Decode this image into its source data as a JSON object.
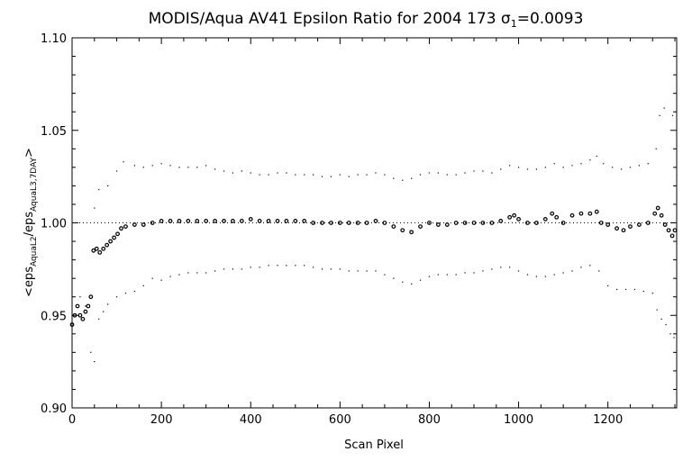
{
  "chart_data": {
    "type": "scatter",
    "title_main": "MODIS/Aqua AV41 Epsilon Ratio for 2004 173 ",
    "title_sigma": "σ",
    "title_sigma_sub": "1",
    "title_value": "=0.0093",
    "xlabel": "Scan Pixel",
    "ylabel_parts": {
      "open": "<eps",
      "sub1": "AquaL2",
      "slash": "/eps",
      "sub2": "AquaL3,7DAY",
      "close": ">"
    },
    "xlim": [
      0,
      1354
    ],
    "ylim": [
      0.9,
      1.1
    ],
    "x_ticks": [
      {
        "value": 0,
        "label": "0"
      },
      {
        "value": 200,
        "label": "200"
      },
      {
        "value": 400,
        "label": "400"
      },
      {
        "value": 600,
        "label": "600"
      },
      {
        "value": 800,
        "label": "800"
      },
      {
        "value": 1000,
        "label": "1000"
      },
      {
        "value": 1200,
        "label": "1200"
      }
    ],
    "y_ticks": [
      {
        "value": 0.9,
        "label": "0.90"
      },
      {
        "value": 0.95,
        "label": "0.95"
      },
      {
        "value": 1.0,
        "label": "1.00"
      },
      {
        "value": 1.05,
        "label": "1.05"
      },
      {
        "value": 1.1,
        "label": "1.10"
      }
    ],
    "reference_line": 1.0,
    "grid": false,
    "legend": "none",
    "series": [
      {
        "role": "mean",
        "points": [
          [
            0,
            0.945
          ],
          [
            6,
            0.95
          ],
          [
            12,
            0.955
          ],
          [
            18,
            0.95
          ],
          [
            24,
            0.948
          ],
          [
            30,
            0.952
          ],
          [
            36,
            0.955
          ],
          [
            42,
            0.96
          ],
          [
            48,
            0.985
          ],
          [
            55,
            0.986
          ],
          [
            62,
            0.984
          ],
          [
            70,
            0.986
          ],
          [
            78,
            0.988
          ],
          [
            86,
            0.99
          ],
          [
            94,
            0.992
          ],
          [
            102,
            0.994
          ],
          [
            110,
            0.997
          ],
          [
            120,
            0.998
          ],
          [
            140,
            0.999
          ],
          [
            160,
            0.999
          ],
          [
            180,
            1.0
          ],
          [
            200,
            1.001
          ],
          [
            220,
            1.001
          ],
          [
            240,
            1.001
          ],
          [
            260,
            1.001
          ],
          [
            280,
            1.001
          ],
          [
            300,
            1.001
          ],
          [
            320,
            1.001
          ],
          [
            340,
            1.001
          ],
          [
            360,
            1.001
          ],
          [
            380,
            1.001
          ],
          [
            400,
            1.002
          ],
          [
            420,
            1.001
          ],
          [
            440,
            1.001
          ],
          [
            460,
            1.001
          ],
          [
            480,
            1.001
          ],
          [
            500,
            1.001
          ],
          [
            520,
            1.001
          ],
          [
            540,
            1.0
          ],
          [
            560,
            1.0
          ],
          [
            580,
            1.0
          ],
          [
            600,
            1.0
          ],
          [
            620,
            1.0
          ],
          [
            640,
            1.0
          ],
          [
            660,
            1.0
          ],
          [
            680,
            1.001
          ],
          [
            700,
            1.0
          ],
          [
            720,
            0.998
          ],
          [
            740,
            0.996
          ],
          [
            760,
            0.995
          ],
          [
            780,
            0.998
          ],
          [
            800,
            1.0
          ],
          [
            820,
            0.999
          ],
          [
            840,
            0.999
          ],
          [
            860,
            1.0
          ],
          [
            880,
            1.0
          ],
          [
            900,
            1.0
          ],
          [
            920,
            1.0
          ],
          [
            940,
            1.0
          ],
          [
            960,
            1.001
          ],
          [
            980,
            1.003
          ],
          [
            990,
            1.004
          ],
          [
            1000,
            1.002
          ],
          [
            1020,
            1.0
          ],
          [
            1040,
            1.0
          ],
          [
            1060,
            1.002
          ],
          [
            1075,
            1.005
          ],
          [
            1085,
            1.003
          ],
          [
            1100,
            1.0
          ],
          [
            1120,
            1.004
          ],
          [
            1140,
            1.005
          ],
          [
            1160,
            1.005
          ],
          [
            1175,
            1.006
          ],
          [
            1185,
            1.0
          ],
          [
            1200,
            0.999
          ],
          [
            1220,
            0.997
          ],
          [
            1235,
            0.996
          ],
          [
            1250,
            0.998
          ],
          [
            1270,
            0.999
          ],
          [
            1290,
            1.0
          ],
          [
            1305,
            1.005
          ],
          [
            1312,
            1.008
          ],
          [
            1320,
            1.004
          ],
          [
            1328,
            0.999
          ],
          [
            1336,
            0.996
          ],
          [
            1344,
            0.993
          ],
          [
            1350,
            0.996
          ]
        ]
      },
      {
        "role": "upper",
        "points": [
          [
            50,
            1.008
          ],
          [
            60,
            1.018
          ],
          [
            80,
            1.02
          ],
          [
            100,
            1.028
          ],
          [
            115,
            1.033
          ],
          [
            140,
            1.031
          ],
          [
            160,
            1.03
          ],
          [
            180,
            1.031
          ],
          [
            200,
            1.032
          ],
          [
            220,
            1.031
          ],
          [
            240,
            1.03
          ],
          [
            260,
            1.03
          ],
          [
            280,
            1.03
          ],
          [
            300,
            1.031
          ],
          [
            320,
            1.029
          ],
          [
            340,
            1.028
          ],
          [
            360,
            1.027
          ],
          [
            380,
            1.028
          ],
          [
            400,
            1.027
          ],
          [
            420,
            1.026
          ],
          [
            440,
            1.026
          ],
          [
            460,
            1.027
          ],
          [
            480,
            1.027
          ],
          [
            500,
            1.026
          ],
          [
            520,
            1.026
          ],
          [
            540,
            1.026
          ],
          [
            560,
            1.025
          ],
          [
            580,
            1.025
          ],
          [
            600,
            1.026
          ],
          [
            620,
            1.025
          ],
          [
            640,
            1.026
          ],
          [
            660,
            1.026
          ],
          [
            680,
            1.027
          ],
          [
            700,
            1.026
          ],
          [
            720,
            1.024
          ],
          [
            740,
            1.023
          ],
          [
            760,
            1.024
          ],
          [
            780,
            1.026
          ],
          [
            800,
            1.027
          ],
          [
            820,
            1.027
          ],
          [
            840,
            1.026
          ],
          [
            860,
            1.026
          ],
          [
            880,
            1.027
          ],
          [
            900,
            1.028
          ],
          [
            920,
            1.028
          ],
          [
            940,
            1.027
          ],
          [
            960,
            1.029
          ],
          [
            980,
            1.031
          ],
          [
            1000,
            1.03
          ],
          [
            1020,
            1.029
          ],
          [
            1040,
            1.029
          ],
          [
            1060,
            1.03
          ],
          [
            1080,
            1.032
          ],
          [
            1100,
            1.03
          ],
          [
            1120,
            1.031
          ],
          [
            1140,
            1.032
          ],
          [
            1160,
            1.034
          ],
          [
            1175,
            1.036
          ],
          [
            1190,
            1.032
          ],
          [
            1210,
            1.03
          ],
          [
            1230,
            1.029
          ],
          [
            1250,
            1.03
          ],
          [
            1270,
            1.031
          ],
          [
            1290,
            1.032
          ],
          [
            1308,
            1.04
          ],
          [
            1316,
            1.058
          ],
          [
            1326,
            1.062
          ],
          [
            1345,
            1.058
          ]
        ]
      },
      {
        "role": "lower",
        "points": [
          [
            18,
            0.96
          ],
          [
            30,
            0.955
          ],
          [
            42,
            0.93
          ],
          [
            50,
            0.925
          ],
          [
            60,
            0.948
          ],
          [
            70,
            0.952
          ],
          [
            80,
            0.956
          ],
          [
            100,
            0.96
          ],
          [
            120,
            0.962
          ],
          [
            140,
            0.963
          ],
          [
            160,
            0.966
          ],
          [
            180,
            0.97
          ],
          [
            200,
            0.969
          ],
          [
            220,
            0.971
          ],
          [
            240,
            0.972
          ],
          [
            260,
            0.973
          ],
          [
            280,
            0.973
          ],
          [
            300,
            0.973
          ],
          [
            320,
            0.974
          ],
          [
            340,
            0.975
          ],
          [
            360,
            0.975
          ],
          [
            380,
            0.975
          ],
          [
            400,
            0.976
          ],
          [
            420,
            0.976
          ],
          [
            440,
            0.977
          ],
          [
            460,
            0.977
          ],
          [
            480,
            0.977
          ],
          [
            500,
            0.977
          ],
          [
            520,
            0.977
          ],
          [
            540,
            0.976
          ],
          [
            560,
            0.975
          ],
          [
            580,
            0.975
          ],
          [
            600,
            0.975
          ],
          [
            620,
            0.974
          ],
          [
            640,
            0.974
          ],
          [
            660,
            0.974
          ],
          [
            680,
            0.974
          ],
          [
            700,
            0.972
          ],
          [
            720,
            0.97
          ],
          [
            740,
            0.968
          ],
          [
            760,
            0.967
          ],
          [
            780,
            0.969
          ],
          [
            800,
            0.971
          ],
          [
            820,
            0.972
          ],
          [
            840,
            0.972
          ],
          [
            860,
            0.972
          ],
          [
            880,
            0.973
          ],
          [
            900,
            0.973
          ],
          [
            920,
            0.974
          ],
          [
            940,
            0.975
          ],
          [
            960,
            0.976
          ],
          [
            980,
            0.976
          ],
          [
            1000,
            0.974
          ],
          [
            1020,
            0.972
          ],
          [
            1040,
            0.971
          ],
          [
            1060,
            0.971
          ],
          [
            1080,
            0.972
          ],
          [
            1100,
            0.973
          ],
          [
            1120,
            0.974
          ],
          [
            1140,
            0.976
          ],
          [
            1160,
            0.977
          ],
          [
            1180,
            0.974
          ],
          [
            1200,
            0.966
          ],
          [
            1220,
            0.964
          ],
          [
            1240,
            0.964
          ],
          [
            1260,
            0.964
          ],
          [
            1280,
            0.963
          ],
          [
            1300,
            0.962
          ],
          [
            1310,
            0.953
          ],
          [
            1320,
            0.948
          ],
          [
            1330,
            0.945
          ],
          [
            1340,
            0.94
          ],
          [
            1348,
            0.938
          ]
        ]
      }
    ]
  }
}
